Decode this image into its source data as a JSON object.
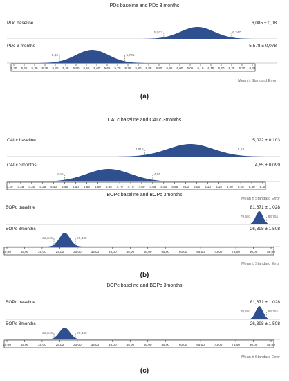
{
  "colors": {
    "fill": "#2f4f8f",
    "axis": "#333333",
    "baseline": "#999999",
    "dashed": "#666666",
    "text": "#222222",
    "muted": "#666666"
  },
  "chart_data": [
    {
      "type": "area",
      "panel_label": "(a)",
      "title": "PDc baseline and PDc 3 months",
      "footer": "Mean ± Standard Error",
      "x_ticks": [
        "5,20",
        "5,25",
        "5,30",
        "5,35",
        "5,40",
        "5,45",
        "5,50",
        "5,55",
        "5,60",
        "5,65",
        "5,70",
        "5,75",
        "5,80",
        "5,85",
        "5,90",
        "5,95",
        "6,00",
        "6,05",
        "6,10",
        "6,15",
        "6,20",
        "6,25",
        "6,30",
        "6,35"
      ],
      "xlim": [
        5.2,
        6.35
      ],
      "series": [
        {
          "name": "PDc baseline",
          "value_label": "6,085 ± 0,08",
          "mean": 6.085,
          "lower": 5.923,
          "upper": 6.247,
          "lower_label": "5,923",
          "upper_label": "6,247"
        },
        {
          "name": "PDc 3 months",
          "value_label": "5,578 ± 0,078",
          "mean": 5.578,
          "lower": 5.42,
          "upper": 5.735,
          "lower_label": "5,42",
          "upper_label": "5,735"
        }
      ]
    },
    {
      "type": "area",
      "panel_label": "",
      "title": "CALc baseline and CALc 3months",
      "footer": "Mean ± Standard Error",
      "x_ticks": [
        "4,20",
        "4,25",
        "4,30",
        "4,35",
        "4,40",
        "4,45",
        "4,50",
        "4,55",
        "4,60",
        "4,65",
        "4,70",
        "4,75",
        "4,80",
        "4,85",
        "4,90",
        "4,95",
        "5,00",
        "5,05",
        "5,10",
        "5,15",
        "5,20",
        "5,25",
        "5,30",
        "5,35"
      ],
      "xlim": [
        4.2,
        5.35
      ],
      "series": [
        {
          "name": "CALc baseline",
          "value_label": "5,022 ± 0,103",
          "mean": 5.022,
          "lower": 4.815,
          "upper": 5.23,
          "lower_label": "4,815",
          "upper_label": "5,23"
        },
        {
          "name": "CALc 3months",
          "value_label": "4,65 ± 0,099",
          "mean": 4.65,
          "lower": 4.45,
          "upper": 4.85,
          "lower_label": "4,45",
          "upper_label": "4,85"
        }
      ]
    },
    {
      "type": "area",
      "panel_label": "(b)",
      "title": "BOPc baseline and BOPc 3months",
      "footer": "Mean ± Standard Error",
      "x_ticks": [
        "10,00",
        "15,00",
        "20,00",
        "25,00",
        "30,00",
        "35,00",
        "40,00",
        "45,00",
        "50,00",
        "55,00",
        "60,00",
        "65,00",
        "70,00",
        "75,00",
        "80,00",
        "85,00"
      ],
      "xlim": [
        10,
        85
      ],
      "series": [
        {
          "name": "BOPc baseline",
          "value_label": "81,671 ± 1,028",
          "mean": 81.671,
          "lower": 79.591,
          "upper": 83.751,
          "lower_label": "79,591",
          "upper_label": "83,751"
        },
        {
          "name": "BOPc 3months",
          "value_label": "26,398 ± 1,508",
          "mean": 26.398,
          "lower": 23.346,
          "upper": 29.449,
          "lower_label": "23,346",
          "upper_label": "29,449"
        }
      ]
    },
    {
      "type": "area",
      "panel_label": "(c)",
      "title": "BOPc baseline and BOPc 3months",
      "footer": "Mean ± Standard Error",
      "x_ticks": [
        "10,00",
        "15,00",
        "20,00",
        "25,00",
        "30,00",
        "35,00",
        "40,00",
        "45,00",
        "50,00",
        "55,00",
        "60,00",
        "65,00",
        "70,00",
        "75,00",
        "80,00",
        "85,00"
      ],
      "xlim": [
        10,
        85
      ],
      "series": [
        {
          "name": "BOPc baseline",
          "value_label": "81,671 ± 1,028",
          "mean": 81.671,
          "lower": 79.591,
          "upper": 83.751,
          "lower_label": "79,591",
          "upper_label": "83,751"
        },
        {
          "name": "BOPc 3months",
          "value_label": "26,398 ± 1,508",
          "mean": 26.398,
          "lower": 23.346,
          "upper": 29.449,
          "lower_label": "23,346",
          "upper_label": "29,449"
        }
      ]
    }
  ]
}
